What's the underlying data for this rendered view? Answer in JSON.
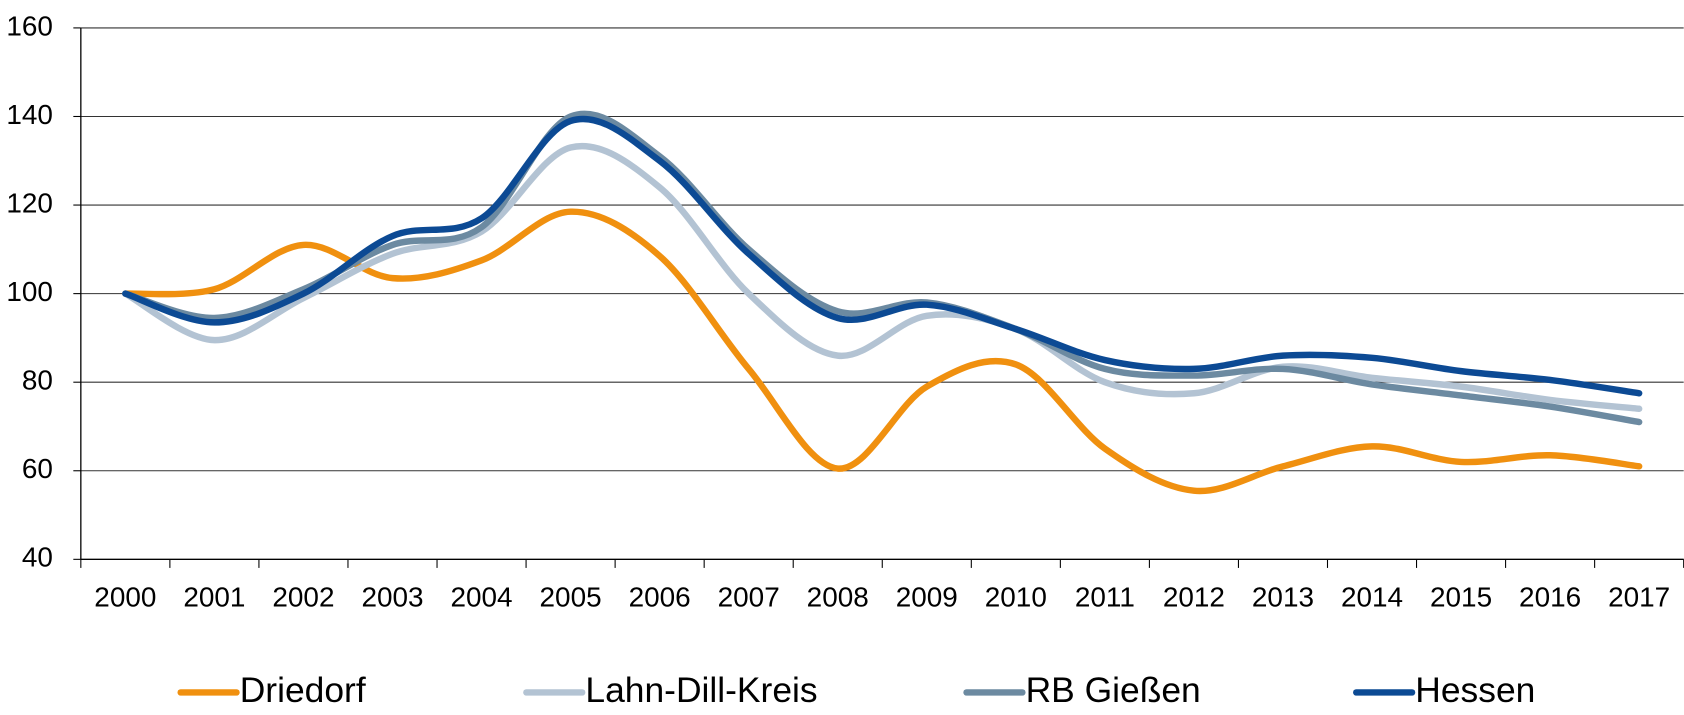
{
  "chart_data": {
    "type": "line",
    "categories": [
      "2000",
      "2001",
      "2002",
      "2003",
      "2004",
      "2005",
      "2006",
      "2007",
      "2008",
      "2009",
      "2010",
      "2011",
      "2012",
      "2013",
      "2014",
      "2015",
      "2016",
      "2017"
    ],
    "series": [
      {
        "name": "Driedorf",
        "color": "#f0900f",
        "values": [
          100,
          101,
          111,
          103.5,
          107.5,
          118.5,
          108.5,
          83,
          60.5,
          79,
          84,
          65,
          55.5,
          61,
          65.5,
          62,
          63.5,
          61
        ]
      },
      {
        "name": "Lahn-Dill-Kreis",
        "color": "#b3c3d3",
        "values": [
          100,
          89.5,
          99,
          109,
          114,
          133,
          124,
          100,
          86,
          95,
          92,
          80,
          77.5,
          83.5,
          81,
          79,
          76,
          74
        ]
      },
      {
        "name": "RB Gießen",
        "color": "#6c8aa1",
        "values": [
          100,
          94.5,
          101,
          111,
          115,
          140,
          131,
          110,
          96,
          98,
          92,
          83,
          81.5,
          83,
          79.5,
          77,
          74.5,
          71
        ]
      },
      {
        "name": "Hessen",
        "color": "#0c4a94",
        "values": [
          100,
          93.5,
          100,
          113,
          117,
          139,
          130,
          109,
          94.5,
          97.5,
          92,
          85,
          83,
          86,
          85.5,
          82.5,
          80.5,
          77.5
        ]
      }
    ],
    "ylim": [
      40,
      160
    ],
    "yticks": [
      40,
      60,
      80,
      100,
      120,
      140,
      160
    ],
    "grid": true,
    "legend": "bottom"
  }
}
